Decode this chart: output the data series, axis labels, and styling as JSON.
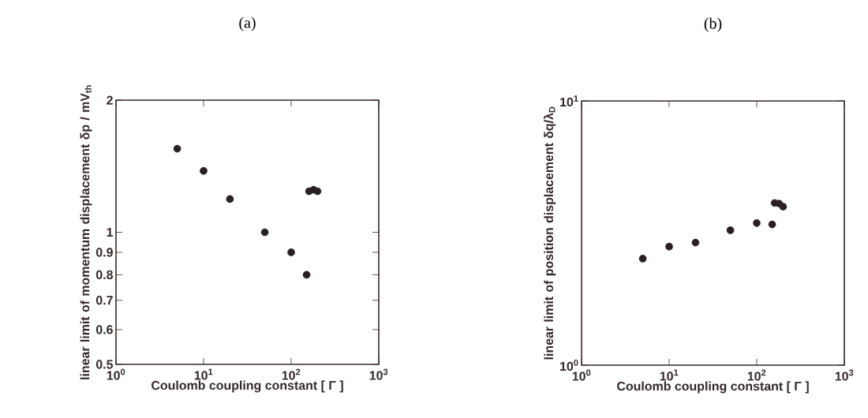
{
  "chart_data": [
    {
      "type": "scatter",
      "title": "(a)",
      "xlabel": "Coulomb coupling constant [ Γ ]",
      "ylabel": "linear limit of momentum displacement δp / mV$_{th}$",
      "x": [
        5,
        10,
        20,
        50,
        100,
        150,
        160,
        180,
        200
      ],
      "series": [
        {
          "color": "#2a2024",
          "values": [
            1.55,
            1.38,
            1.19,
            1.0,
            0.9,
            0.8,
            1.24,
            1.25,
            1.24
          ]
        }
      ],
      "log": "xy",
      "marker": "circle",
      "grid": false,
      "xlim": [
        1,
        1000
      ],
      "ylim": [
        0.5,
        2
      ],
      "xticks": [
        {
          "value": 1,
          "label": "10$^{0}$"
        },
        {
          "value": 10,
          "label": "10$^{1}$"
        },
        {
          "value": 100,
          "label": "10$^{2}$"
        },
        {
          "value": 1000,
          "label": "10$^{3}$"
        }
      ],
      "yticks": [
        0.5,
        0.6,
        0.7,
        0.8,
        0.9,
        1,
        2
      ]
    },
    {
      "type": "scatter",
      "title": "(b)",
      "xlabel": "Coulomb coupling constant [ Γ ]",
      "ylabel": "linear limit of position displacement δq/λ$_{D}$",
      "x": [
        5,
        10,
        20,
        50,
        100,
        150,
        160,
        180,
        200
      ],
      "series": [
        {
          "color": "#2a2024",
          "values": [
            2.53,
            2.81,
            2.91,
            3.24,
            3.45,
            3.41,
            4.11,
            4.09,
            3.98
          ]
        }
      ],
      "log": "xy",
      "marker": "circle",
      "grid": false,
      "xlim": [
        1,
        1000
      ],
      "ylim": [
        1,
        10
      ],
      "xticks": [
        {
          "value": 1,
          "label": "10$^{0}$"
        },
        {
          "value": 10,
          "label": "10$^{1}$"
        },
        {
          "value": 100,
          "label": "10$^{2}$"
        },
        {
          "value": 1000,
          "label": "10$^{3}$"
        }
      ],
      "yticks": [
        {
          "value": 1,
          "label": "10$^{0}$"
        },
        {
          "value": 10,
          "label": "10$^{1}$"
        }
      ]
    }
  ]
}
